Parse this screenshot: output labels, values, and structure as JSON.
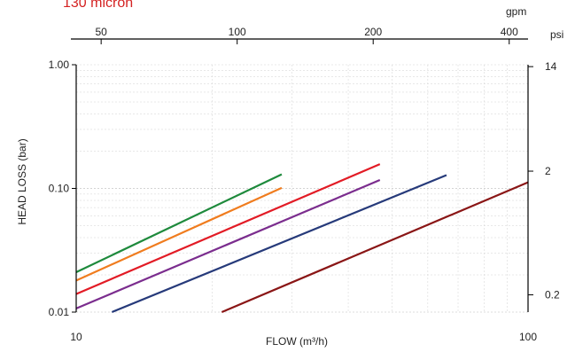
{
  "chart_data": {
    "type": "line",
    "title": "130 micron",
    "xlabel": "FLOW (m³/h)",
    "ylabel": "HEAD LOSS  (bar)",
    "x_scale": "log",
    "y_scale": "log",
    "xlim": [
      10,
      100
    ],
    "ylim": [
      0.01,
      1.0
    ],
    "x_ticks": [
      {
        "value": 10,
        "label": "10"
      },
      {
        "value": 100,
        "label": "100"
      }
    ],
    "y_ticks": [
      {
        "value": 0.01,
        "label": "0.01"
      },
      {
        "value": 0.1,
        "label": "0.10"
      },
      {
        "value": 1.0,
        "label": "1.00"
      }
    ],
    "top_axis": {
      "unit": "gpm",
      "ticks": [
        {
          "value": 50,
          "label": "50"
        },
        {
          "value": 100,
          "label": "100"
        },
        {
          "value": 200,
          "label": "200"
        },
        {
          "value": 400,
          "label": "400"
        }
      ]
    },
    "right_axis": {
      "unit": "psi",
      "ticks": [
        {
          "value": 0.2,
          "label": "0.2"
        },
        {
          "value": 2,
          "label": "2"
        },
        {
          "value": 14,
          "label": "14"
        }
      ]
    },
    "grid": true,
    "series": [
      {
        "color": "#1e8a3c",
        "x": [
          10,
          28.5
        ],
        "y": [
          0.021,
          0.13
        ]
      },
      {
        "color": "#f07c1e",
        "x": [
          10,
          28.5
        ],
        "y": [
          0.018,
          0.101
        ]
      },
      {
        "color": "#e21b25",
        "x": [
          10,
          47
        ],
        "y": [
          0.014,
          0.157
        ]
      },
      {
        "color": "#7b2d8e",
        "x": [
          10,
          47
        ],
        "y": [
          0.0107,
          0.117
        ]
      },
      {
        "color": "#263a7a",
        "x": [
          12,
          66
        ],
        "y": [
          0.01,
          0.128
        ]
      },
      {
        "color": "#8a1616",
        "x": [
          21,
          100
        ],
        "y": [
          0.01,
          0.112
        ]
      }
    ]
  }
}
